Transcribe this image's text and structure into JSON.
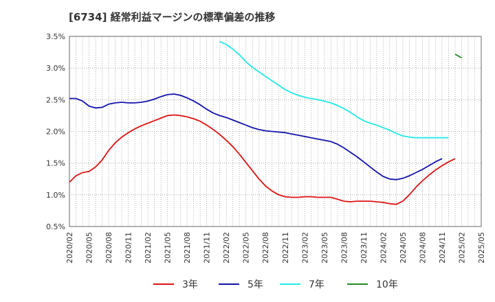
{
  "chart_data": {
    "type": "line",
    "title": "[6734]  経常利益マージンの標準偏差の推移",
    "xlabel": "",
    "ylabel": "",
    "y_unit": "%",
    "ylim": [
      0.5,
      3.5
    ],
    "y_ticks": [
      "0.5%",
      "1.0%",
      "1.5%",
      "2.0%",
      "2.5%",
      "3.0%",
      "3.5%"
    ],
    "x_ticks": [
      "2020/02",
      "2020/05",
      "2020/08",
      "2020/11",
      "2021/02",
      "2021/05",
      "2021/08",
      "2021/11",
      "2022/02",
      "2022/05",
      "2022/08",
      "2022/11",
      "2023/02",
      "2023/05",
      "2023/08",
      "2023/11",
      "2024/02",
      "2024/05",
      "2024/08",
      "2024/11",
      "2025/02",
      "2025/05"
    ],
    "grid": true,
    "legend_position": "bottom",
    "colors": {
      "3年": "#dd1111",
      "5年": "#1111aa",
      "7年": "#22e8e8",
      "10年": "#228822"
    },
    "series": [
      {
        "name": "3年",
        "color": "#dd1111",
        "start": "2020/02",
        "values": [
          1.2,
          1.3,
          1.35,
          1.37,
          1.44,
          1.55,
          1.7,
          1.82,
          1.91,
          1.98,
          2.04,
          2.09,
          2.13,
          2.17,
          2.21,
          2.25,
          2.26,
          2.25,
          2.23,
          2.2,
          2.16,
          2.1,
          2.03,
          1.95,
          1.86,
          1.76,
          1.64,
          1.51,
          1.38,
          1.25,
          1.14,
          1.06,
          1.0,
          0.97,
          0.96,
          0.96,
          0.97,
          0.97,
          0.96,
          0.96,
          0.96,
          0.93,
          0.9,
          0.89,
          0.9,
          0.9,
          0.9,
          0.89,
          0.88,
          0.86,
          0.85,
          0.9,
          1.0,
          1.12,
          1.22,
          1.31,
          1.39,
          1.46,
          1.52,
          1.57
        ]
      },
      {
        "name": "5年",
        "color": "#1111aa",
        "start": "2020/02",
        "values": [
          2.52,
          2.52,
          2.48,
          2.4,
          2.37,
          2.38,
          2.43,
          2.45,
          2.46,
          2.45,
          2.45,
          2.46,
          2.48,
          2.51,
          2.55,
          2.58,
          2.59,
          2.57,
          2.53,
          2.48,
          2.42,
          2.35,
          2.29,
          2.25,
          2.22,
          2.18,
          2.14,
          2.1,
          2.06,
          2.03,
          2.01,
          2.0,
          1.99,
          1.98,
          1.96,
          1.94,
          1.92,
          1.9,
          1.88,
          1.86,
          1.84,
          1.8,
          1.74,
          1.67,
          1.6,
          1.52,
          1.44,
          1.36,
          1.29,
          1.25,
          1.24,
          1.26,
          1.3,
          1.35,
          1.4,
          1.46,
          1.52,
          1.57
        ]
      },
      {
        "name": "7年",
        "color": "#22e8e8",
        "start": "2022/01",
        "values": [
          3.42,
          3.37,
          3.3,
          3.21,
          3.1,
          3.01,
          2.94,
          2.87,
          2.8,
          2.73,
          2.66,
          2.61,
          2.57,
          2.54,
          2.52,
          2.5,
          2.48,
          2.45,
          2.41,
          2.36,
          2.3,
          2.23,
          2.17,
          2.13,
          2.1,
          2.06,
          2.02,
          1.97,
          1.93,
          1.91,
          1.9,
          1.9,
          1.9,
          1.9,
          1.9,
          1.9
        ]
      },
      {
        "name": "10年",
        "color": "#228822",
        "start": "2025/01",
        "values": [
          3.22,
          3.16
        ]
      }
    ]
  }
}
